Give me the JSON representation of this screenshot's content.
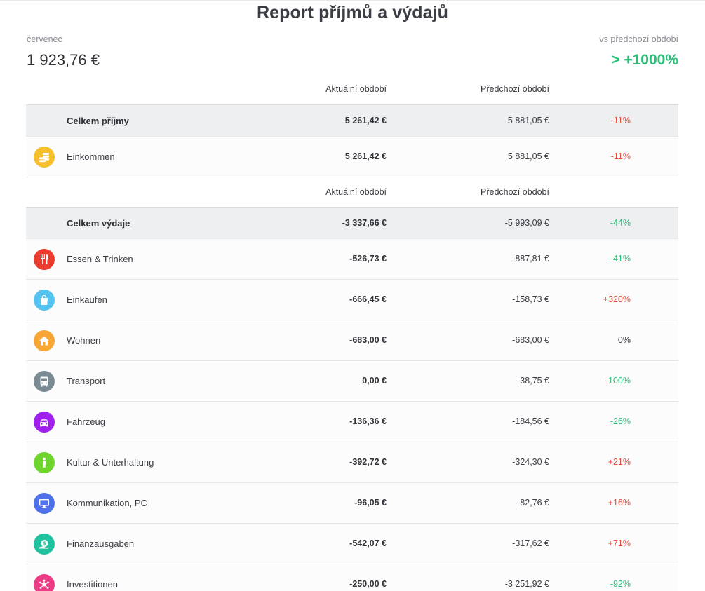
{
  "title": "Report příjmů a výdajů",
  "summary": {
    "period_label": "červenec",
    "period_amount": "1 923,76 €",
    "compare_label": "vs předchozí období",
    "compare_value": "> +1000%"
  },
  "columns": {
    "current": "Aktuální období",
    "previous": "Předchozí období"
  },
  "income": {
    "total": {
      "label": "Celkem příjmy",
      "current": "5 261,42 €",
      "previous": "5 881,05 €",
      "change": "-11%"
    },
    "items": [
      {
        "name": "Einkommen",
        "icon": "coins-icon",
        "color": "#f6c02c",
        "current": "5 261,42 €",
        "previous": "5 881,05 €",
        "change": "-11%"
      }
    ]
  },
  "expenses": {
    "total": {
      "label": "Celkem výdaje",
      "current": "-3 337,66 €",
      "previous": "-5 993,09 €",
      "change": "-44%"
    },
    "items": [
      {
        "name": "Essen & Trinken",
        "icon": "cutlery-icon",
        "color": "#ec3b2f",
        "current": "-526,73 €",
        "previous": "-887,81 €",
        "change": "-41%"
      },
      {
        "name": "Einkaufen",
        "icon": "shopping-bag-icon",
        "color": "#55c3f0",
        "current": "-666,45 €",
        "previous": "-158,73 €",
        "change": "+320%"
      },
      {
        "name": "Wohnen",
        "icon": "house-icon",
        "color": "#f7a534",
        "current": "-683,00 €",
        "previous": "-683,00 €",
        "change": "0%"
      },
      {
        "name": "Transport",
        "icon": "bus-icon",
        "color": "#7b8b93",
        "current": "0,00 €",
        "previous": "-38,75 €",
        "change": "-100%"
      },
      {
        "name": "Fahrzeug",
        "icon": "car-icon",
        "color": "#a020ee",
        "current": "-136,36 €",
        "previous": "-184,56 €",
        "change": "-26%"
      },
      {
        "name": "Kultur & Unterhaltung",
        "icon": "person-icon",
        "color": "#6fd42e",
        "current": "-392,72 €",
        "previous": "-324,30 €",
        "change": "+21%"
      },
      {
        "name": "Kommunikation, PC",
        "icon": "monitor-icon",
        "color": "#4f72ea",
        "current": "-96,05 €",
        "previous": "-82,76 €",
        "change": "+16%"
      },
      {
        "name": "Finanzausgaben",
        "icon": "money-icon",
        "color": "#21c2a0",
        "current": "-542,07 €",
        "previous": "-317,62 €",
        "change": "+71%"
      },
      {
        "name": "Investitionen",
        "icon": "network-icon",
        "color": "#ee3d86",
        "current": "-250,00 €",
        "previous": "-3 251,92 €",
        "change": "-92%"
      }
    ]
  },
  "colors": {
    "positive": "#2dbe78",
    "negative": "#e64a3b",
    "total_row_bg": "#eeeff1"
  }
}
